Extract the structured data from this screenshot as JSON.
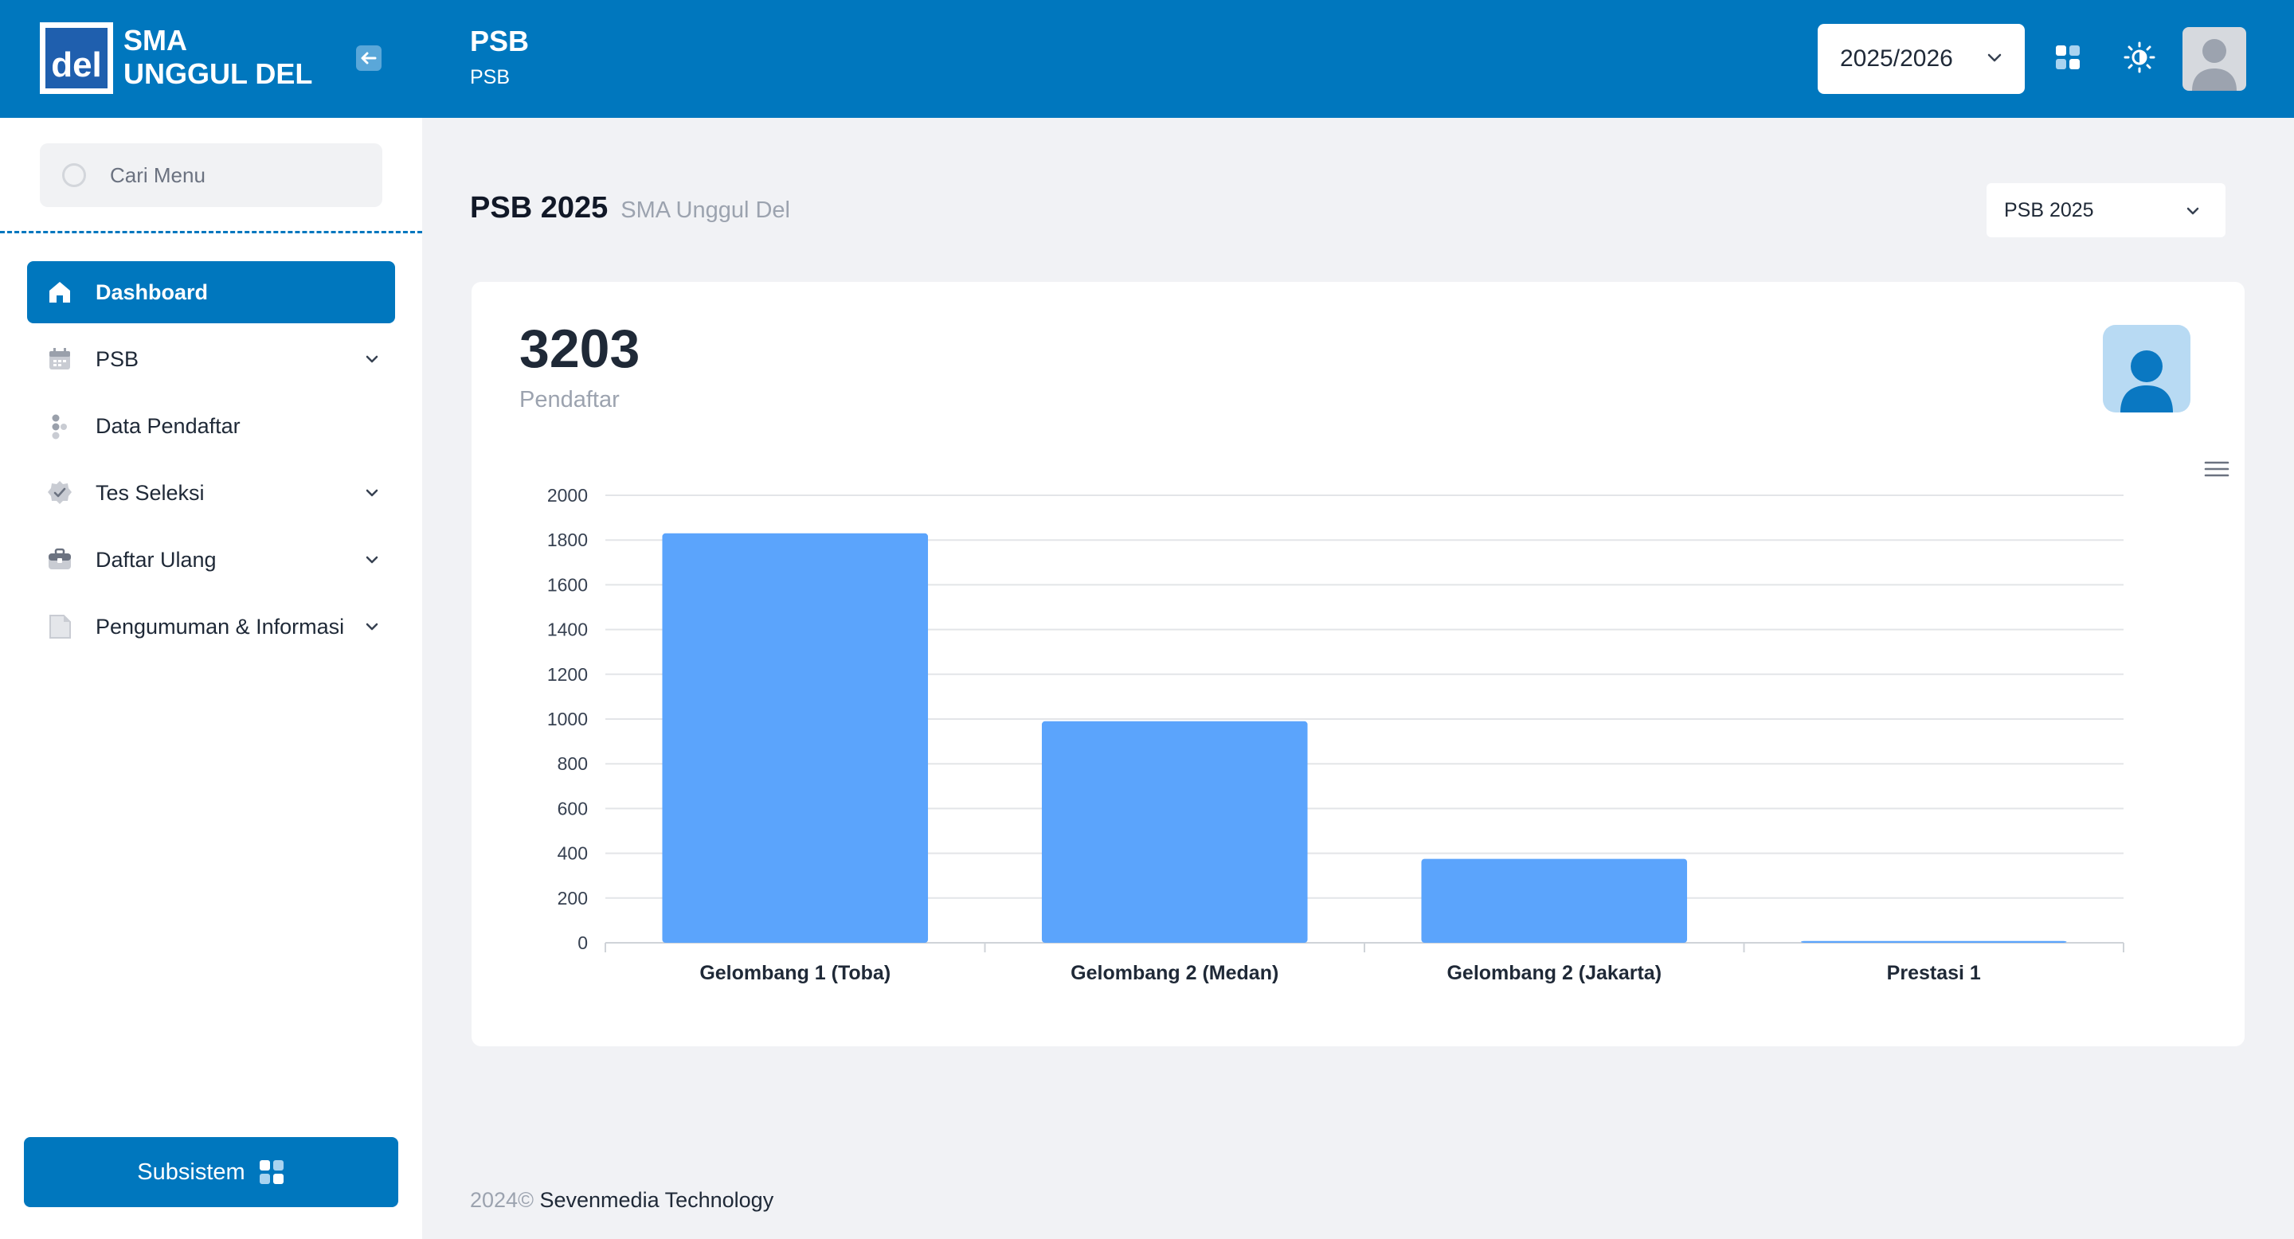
{
  "header": {
    "brand_line1": "SMA",
    "brand_line2": "UNGGUL DEL",
    "logo_text": "del",
    "page_title": "PSB",
    "page_subtitle": "PSB",
    "year_select": "2025/2026"
  },
  "sidebar": {
    "search_placeholder": "Cari Menu",
    "items": [
      {
        "label": "Dashboard",
        "icon": "home-icon",
        "active": true,
        "expandable": false
      },
      {
        "label": "PSB",
        "icon": "calendar-icon",
        "active": false,
        "expandable": true
      },
      {
        "label": "Data Pendaftar",
        "icon": "users-dots-icon",
        "active": false,
        "expandable": false
      },
      {
        "label": "Tes Seleksi",
        "icon": "badge-check-icon",
        "active": false,
        "expandable": true
      },
      {
        "label": "Daftar Ulang",
        "icon": "briefcase-icon",
        "active": false,
        "expandable": true
      },
      {
        "label": "Pengumuman & Informasi",
        "icon": "document-icon",
        "active": false,
        "expandable": true
      }
    ],
    "subsistem_label": "Subsistem"
  },
  "main": {
    "title": "PSB 2025",
    "subtitle": "SMA Unggul Del",
    "psb_select": "PSB 2025",
    "stat_value": "3203",
    "stat_label": "Pendaftar"
  },
  "chart_data": {
    "type": "bar",
    "categories": [
      "Gelombang 1 (Toba)",
      "Gelombang 2 (Medan)",
      "Gelombang 2 (Jakarta)",
      "Prestasi 1"
    ],
    "values": [
      1830,
      990,
      375,
      8
    ],
    "ylim": [
      0,
      2000
    ],
    "yticks": [
      0,
      200,
      400,
      600,
      800,
      1000,
      1200,
      1400,
      1600,
      1800,
      2000
    ],
    "grid": true,
    "bar_color": "#5ba4fc"
  },
  "footer": {
    "year": "2024©",
    "company": "Sevenmedia Technology"
  },
  "colors": {
    "primary": "#0077be",
    "background": "#f1f2f5"
  }
}
